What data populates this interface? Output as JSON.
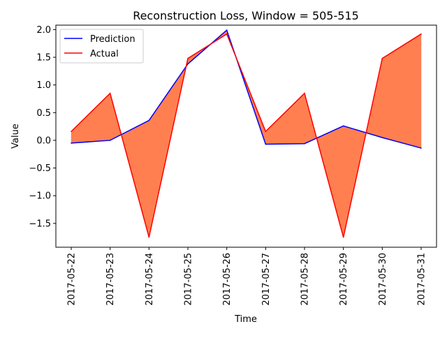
{
  "chart_data": {
    "type": "line",
    "title": "Reconstruction Loss, Window = 505-515",
    "xlabel": "Time",
    "ylabel": "Value",
    "categories": [
      "2017-05-22",
      "2017-05-23",
      "2017-05-24",
      "2017-05-25",
      "2017-05-26",
      "2017-05-27",
      "2017-05-28",
      "2017-05-29",
      "2017-05-30",
      "2017-05-31"
    ],
    "ylim": [
      -1.93,
      2.08
    ],
    "yticks": [
      -1.5,
      -1.0,
      -0.5,
      0.0,
      0.5,
      1.0,
      1.5,
      2.0
    ],
    "ytick_labels": [
      "−1.5",
      "−1.0",
      "−0.5",
      "0.0",
      "0.5",
      "1.0",
      "1.5",
      "2.0"
    ],
    "series": [
      {
        "name": "Prediction",
        "color": "#0000ff",
        "values": [
          -0.05,
          0.0,
          0.36,
          1.38,
          1.99,
          -0.07,
          -0.06,
          0.26,
          0.05,
          -0.14
        ]
      },
      {
        "name": "Actual",
        "color": "#ff0000",
        "values": [
          0.16,
          0.85,
          -1.75,
          1.48,
          1.92,
          0.16,
          0.85,
          -1.75,
          1.48,
          1.92
        ]
      }
    ],
    "fill_between": {
      "color": "#ff7f50"
    },
    "legend_position": "upper-left",
    "grid": false
  }
}
